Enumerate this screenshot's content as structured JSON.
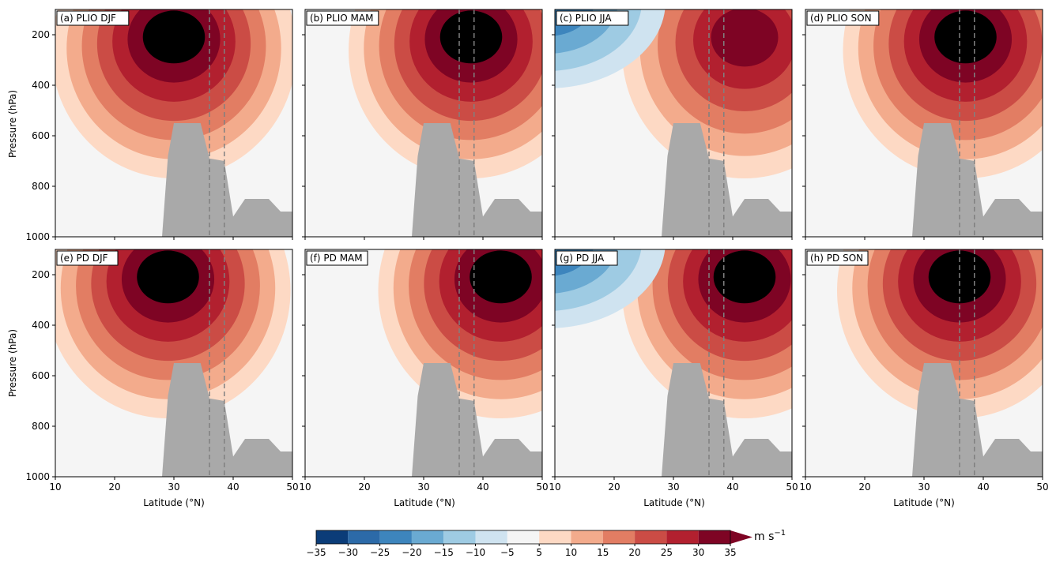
{
  "figure": {
    "xlabel": "Latitude (°N)",
    "ylabel": "Pressure (hPa)",
    "colorbar_unit": "m s",
    "colorbar_unit_sup": "−1",
    "colorbar_ticks": [
      "−35",
      "−30",
      "−25",
      "−20",
      "−15",
      "−10",
      "−5",
      "5",
      "10",
      "15",
      "20",
      "25",
      "30",
      "35"
    ],
    "colorbar_colors": [
      "#0b3c78",
      "#2c6aa8",
      "#3d85bd",
      "#6aaad2",
      "#9ecbe3",
      "#cfe3f0",
      "#f5f5f5",
      "#fdd9c4",
      "#f3ab8c",
      "#e27d63",
      "#cb4c45",
      "#b2202f",
      "#7e0424"
    ]
  },
  "chart_data": [
    {
      "type": "contour",
      "title": "(a) PLIO DJF",
      "x_ticks": [
        "10",
        "20",
        "30",
        "40",
        "50"
      ],
      "y_ticks": [
        "200",
        "400",
        "600",
        "800",
        "1000"
      ],
      "xlim": [
        10,
        50
      ],
      "ylim": [
        1000,
        100
      ],
      "dashed_lines_lat": [
        36,
        38.5
      ],
      "core_jet_lat": 30,
      "core_jet_pressure": 200,
      "max_level": 35
    },
    {
      "type": "contour",
      "title": "(b) PLIO MAM",
      "x_ticks": [
        "10",
        "20",
        "30",
        "40",
        "50"
      ],
      "y_ticks": [
        "200",
        "400",
        "600",
        "800",
        "1000"
      ],
      "xlim": [
        10,
        50
      ],
      "ylim": [
        1000,
        100
      ],
      "dashed_lines_lat": [
        36,
        38.5
      ],
      "core_jet_lat": 38,
      "core_jet_pressure": 200,
      "max_level": 35
    },
    {
      "type": "contour",
      "title": "(c) PLIO JJA",
      "x_ticks": [
        "10",
        "20",
        "30",
        "40",
        "50"
      ],
      "y_ticks": [
        "200",
        "400",
        "600",
        "800",
        "1000"
      ],
      "xlim": [
        10,
        50
      ],
      "ylim": [
        1000,
        100
      ],
      "dashed_lines_lat": [
        36,
        38.5
      ],
      "core_jet_lat": 42,
      "core_jet_pressure": 200,
      "max_level": 30
    },
    {
      "type": "contour",
      "title": "(d) PLIO SON",
      "x_ticks": [
        "10",
        "20",
        "30",
        "40",
        "50"
      ],
      "y_ticks": [
        "200",
        "400",
        "600",
        "800",
        "1000"
      ],
      "xlim": [
        10,
        50
      ],
      "ylim": [
        1000,
        100
      ],
      "dashed_lines_lat": [
        36,
        38.5
      ],
      "core_jet_lat": 37,
      "core_jet_pressure": 200,
      "max_level": 35
    },
    {
      "type": "contour",
      "title": "(e) PD DJF",
      "x_ticks": [
        "10",
        "20",
        "30",
        "40",
        "50"
      ],
      "y_ticks": [
        "200",
        "400",
        "600",
        "800",
        "1000"
      ],
      "xlim": [
        10,
        50
      ],
      "ylim": [
        1000,
        100
      ],
      "dashed_lines_lat": [
        36,
        38.5
      ],
      "core_jet_lat": 29,
      "core_jet_pressure": 200,
      "max_level": 35
    },
    {
      "type": "contour",
      "title": "(f) PD MAM",
      "x_ticks": [
        "10",
        "20",
        "30",
        "40",
        "50"
      ],
      "y_ticks": [
        "200",
        "400",
        "600",
        "800",
        "1000"
      ],
      "xlim": [
        10,
        50
      ],
      "ylim": [
        1000,
        100
      ],
      "dashed_lines_lat": [
        36,
        38.5
      ],
      "core_jet_lat": 43,
      "core_jet_pressure": 200,
      "max_level": 35
    },
    {
      "type": "contour",
      "title": "(g) PD JJA",
      "x_ticks": [
        "10",
        "20",
        "30",
        "40",
        "50"
      ],
      "y_ticks": [
        "200",
        "400",
        "600",
        "800",
        "1000"
      ],
      "xlim": [
        10,
        50
      ],
      "ylim": [
        1000,
        100
      ],
      "dashed_lines_lat": [
        36,
        38.5
      ],
      "core_jet_lat": 42,
      "core_jet_pressure": 200,
      "max_level": 35
    },
    {
      "type": "contour",
      "title": "(h) PD SON",
      "x_ticks": [
        "10",
        "20",
        "30",
        "40",
        "50"
      ],
      "y_ticks": [
        "200",
        "400",
        "600",
        "800",
        "1000"
      ],
      "xlim": [
        10,
        50
      ],
      "ylim": [
        1000,
        100
      ],
      "dashed_lines_lat": [
        36,
        38.5
      ],
      "core_jet_lat": 36,
      "core_jet_pressure": 200,
      "max_level": 35
    }
  ]
}
